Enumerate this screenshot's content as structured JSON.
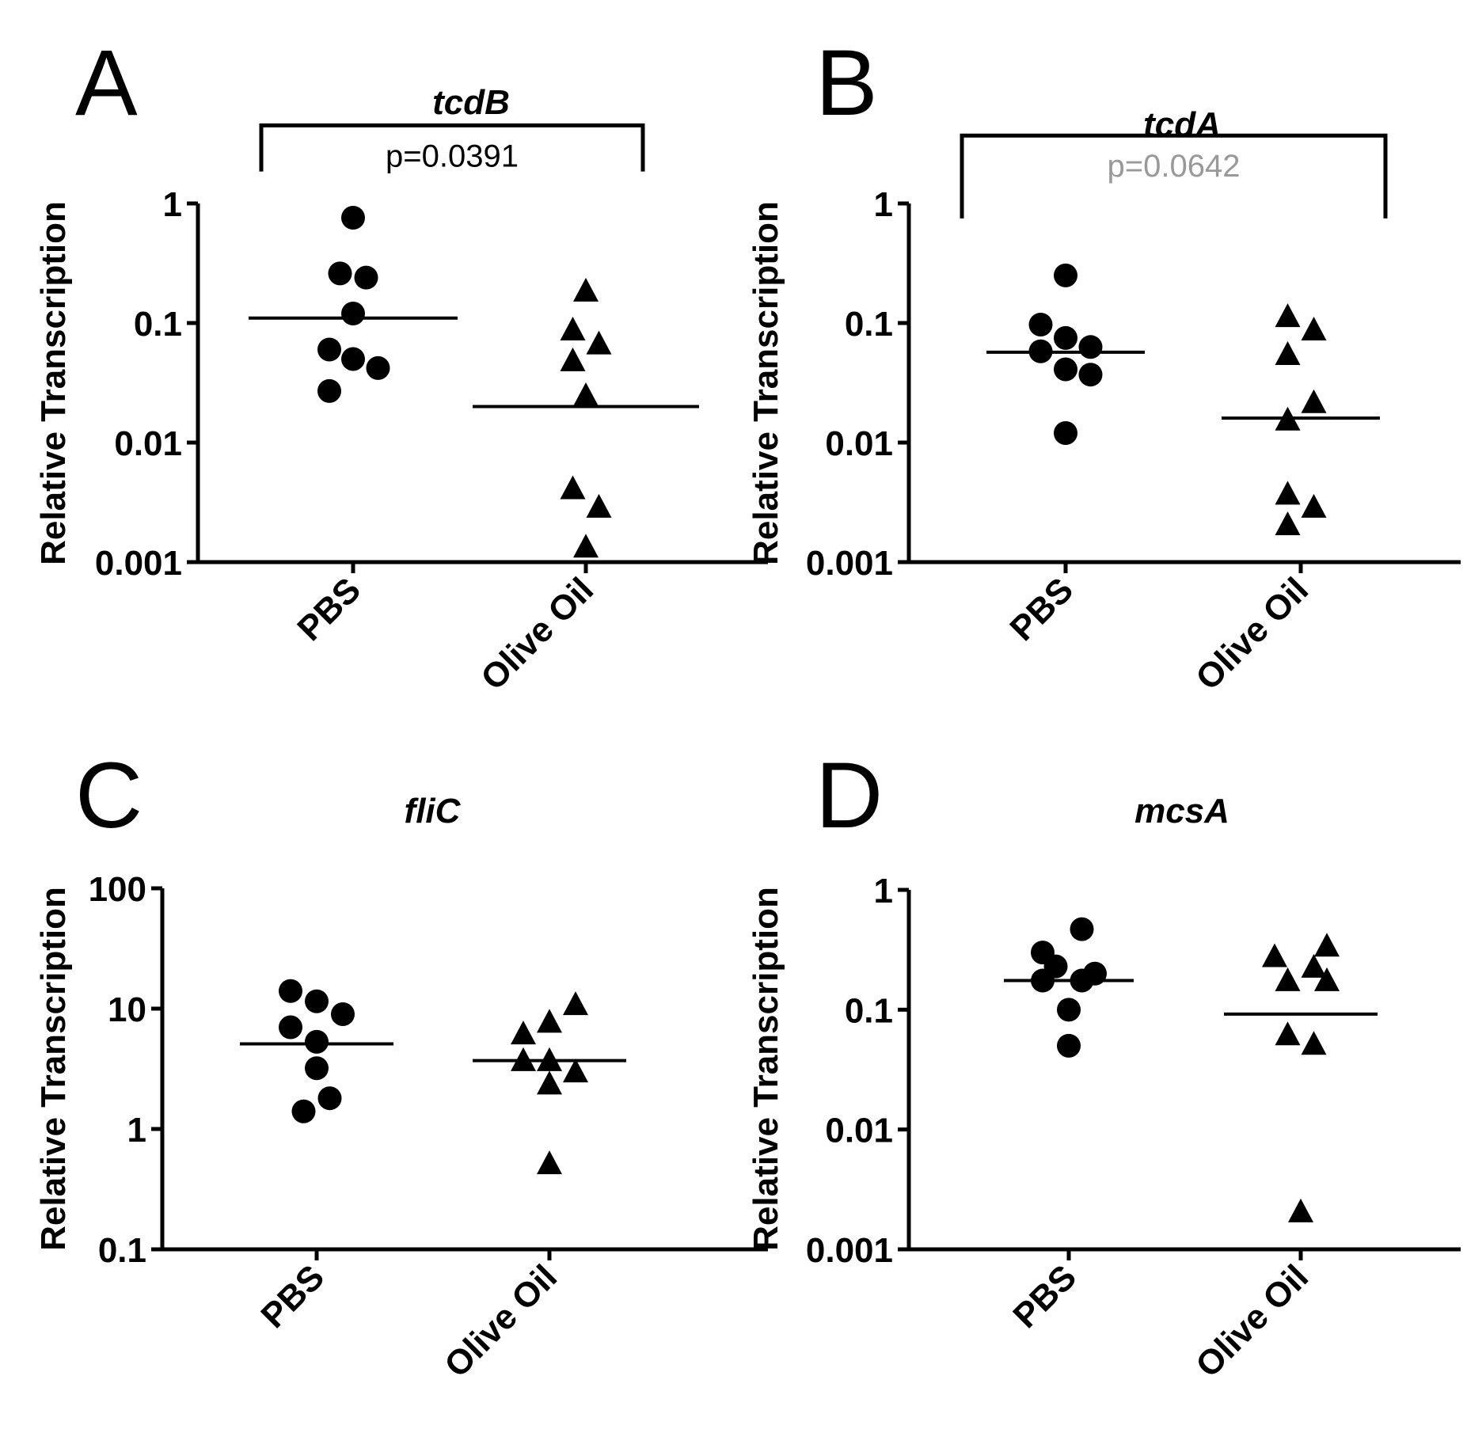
{
  "chart_data": [
    {
      "type": "scatter",
      "panel": "A",
      "title": "tcdB",
      "ylabel": "Relative Transcription",
      "yscale": "log",
      "ylim": [
        0.001,
        1
      ],
      "yticks": [
        {
          "value": 0.001,
          "label": "0.001"
        },
        {
          "value": 0.01,
          "label": "0.01"
        },
        {
          "value": 0.1,
          "label": "0.1"
        },
        {
          "value": 1,
          "label": "1"
        }
      ],
      "categories": [
        "PBS",
        "Olive Oil"
      ],
      "series": [
        {
          "name": "PBS",
          "marker": "circle",
          "points": [
            [
              0.0,
              0.76
            ],
            [
              -0.11,
              0.26
            ],
            [
              0.11,
              0.24
            ],
            [
              0.0,
              0.12
            ],
            [
              -0.2,
              0.06
            ],
            [
              0.0,
              0.05
            ],
            [
              0.21,
              0.042
            ],
            [
              -0.2,
              0.027
            ]
          ],
          "median": 0.11
        },
        {
          "name": "Olive Oil",
          "marker": "triangle",
          "points": [
            [
              0.0,
              0.18
            ],
            [
              -0.11,
              0.085
            ],
            [
              0.11,
              0.065
            ],
            [
              -0.11,
              0.047
            ],
            [
              0.0,
              0.024
            ],
            [
              -0.11,
              0.004
            ],
            [
              0.11,
              0.0028
            ],
            [
              0.0,
              0.0013
            ]
          ],
          "median": 0.02
        }
      ],
      "significance": {
        "text": "p=0.0391",
        "color": "#000000",
        "top_value": 4.5,
        "leg_value": 1.85
      }
    },
    {
      "type": "scatter",
      "panel": "B",
      "title": "tcdA",
      "ylabel": "Relative Transcription",
      "yscale": "log",
      "ylim": [
        0.001,
        1
      ],
      "yticks": [
        {
          "value": 0.001,
          "label": "0.001"
        },
        {
          "value": 0.01,
          "label": "0.01"
        },
        {
          "value": 0.1,
          "label": "0.1"
        },
        {
          "value": 1,
          "label": "1"
        }
      ],
      "categories": [
        "PBS",
        "Olive Oil"
      ],
      "series": [
        {
          "name": "PBS",
          "marker": "circle",
          "points": [
            [
              0.0,
              0.25
            ],
            [
              -0.21,
              0.097
            ],
            [
              0.0,
              0.075
            ],
            [
              0.21,
              0.063
            ],
            [
              -0.21,
              0.058
            ],
            [
              0.0,
              0.041
            ],
            [
              0.21,
              0.037
            ],
            [
              0.0,
              0.012
            ]
          ],
          "median": 0.057
        },
        {
          "name": "Olive Oil",
          "marker": "triangle",
          "points": [
            [
              -0.11,
              0.11
            ],
            [
              0.11,
              0.085
            ],
            [
              -0.11,
              0.053
            ],
            [
              0.11,
              0.021
            ],
            [
              -0.11,
              0.015
            ],
            [
              -0.11,
              0.0036
            ],
            [
              0.11,
              0.0028
            ],
            [
              -0.11,
              0.002
            ]
          ],
          "median": 0.016
        }
      ],
      "significance": {
        "text": "p=0.0642",
        "color": "#999999",
        "top_value": 3.7,
        "leg_value": 0.75
      }
    },
    {
      "type": "scatter",
      "panel": "C",
      "title": "fliC",
      "ylabel": "Relative Transcription",
      "yscale": "log",
      "ylim": [
        0.1,
        100
      ],
      "yticks": [
        {
          "value": 0.1,
          "label": "0.1"
        },
        {
          "value": 1,
          "label": "1"
        },
        {
          "value": 10,
          "label": "10"
        },
        {
          "value": 100,
          "label": "100"
        }
      ],
      "categories": [
        "PBS",
        "Olive Oil"
      ],
      "series": [
        {
          "name": "PBS",
          "marker": "circle",
          "points": [
            [
              -0.22,
              14
            ],
            [
              0.0,
              11.5
            ],
            [
              0.22,
              9
            ],
            [
              -0.22,
              7
            ],
            [
              0.0,
              5.3
            ],
            [
              0.0,
              3.2
            ],
            [
              0.11,
              1.8
            ],
            [
              -0.11,
              1.4
            ]
          ],
          "median": 5.1
        },
        {
          "name": "Olive Oil",
          "marker": "triangle",
          "points": [
            [
              0.22,
              10.5
            ],
            [
              0.0,
              7.5
            ],
            [
              -0.22,
              6
            ],
            [
              -0.22,
              3.6
            ],
            [
              0.0,
              3.6
            ],
            [
              0.22,
              2.9
            ],
            [
              0.0,
              2.3
            ],
            [
              0.0,
              0.5
            ]
          ],
          "median": 3.7
        }
      ]
    },
    {
      "type": "scatter",
      "panel": "D",
      "title": "mcsA",
      "ylabel": "Relative Transcription",
      "yscale": "log",
      "ylim": [
        0.001,
        1
      ],
      "yticks": [
        {
          "value": 0.001,
          "label": "0.001"
        },
        {
          "value": 0.01,
          "label": "0.01"
        },
        {
          "value": 0.1,
          "label": "0.1"
        },
        {
          "value": 1,
          "label": "1"
        }
      ],
      "categories": [
        "PBS",
        "Olive Oil"
      ],
      "series": [
        {
          "name": "PBS",
          "marker": "circle",
          "points": [
            [
              0.11,
              0.47
            ],
            [
              -0.22,
              0.3
            ],
            [
              -0.11,
              0.23
            ],
            [
              0.22,
              0.2
            ],
            [
              -0.22,
              0.175
            ],
            [
              0.11,
              0.175
            ],
            [
              0.0,
              0.1
            ],
            [
              0.0,
              0.05
            ]
          ],
          "median": 0.175
        },
        {
          "name": "Olive Oil",
          "marker": "triangle",
          "points": [
            [
              0.22,
              0.33
            ],
            [
              -0.22,
              0.27
            ],
            [
              0.11,
              0.22
            ],
            [
              -0.11,
              0.17
            ],
            [
              0.22,
              0.17
            ],
            [
              -0.11,
              0.06
            ],
            [
              0.11,
              0.05
            ],
            [
              0.0,
              0.002
            ]
          ],
          "median": 0.092
        }
      ]
    }
  ]
}
